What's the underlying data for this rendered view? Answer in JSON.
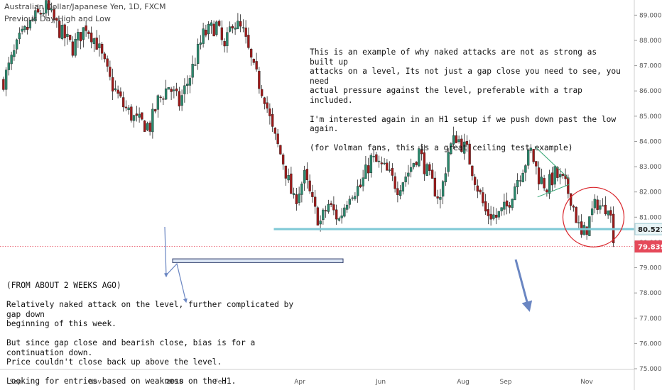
{
  "header": {
    "title": "Australian Dollar/Japanese Yen, 1D, FXCM",
    "indicator": "Previous Day High and Low"
  },
  "annotations": {
    "top_note": "This is an example of why naked attacks are not as strong as built up\nattacks on a level, Its not just a gap close you need to see, you need\nactual pressure against the level, preferable with a trap included.\n\nI'm interested again in an H1 setup if we push down past the low again.\n\n(for Volman fans, this is a great ceiling test example)",
    "bottom_note": "(FROM ABOUT 2 WEEKS AGO)\n\nRelatively naked attack on the level, further complicated by gap down\nbeginning of this week.\n\nBut since gap close and bearish close, bias is for a continuation down.\nPrice couldn't close back up above the level.\n\nLooking for entries based on weakness on the H1."
  },
  "colors": {
    "bull": "#2a8a6e",
    "bear": "#a01919",
    "level_line": "#7fc9d6",
    "level_badge": "#e8f4f6",
    "last_price": "#e5495a",
    "circle": "#d9252b",
    "arrow": "#6a86c2",
    "rect_fill": "#dde7f5",
    "trend": "#3aa878"
  },
  "chart_data": {
    "type": "candlestick",
    "title": "Australian Dollar/Japanese Yen, 1D, FXCM",
    "ylim": [
      75.0,
      89.6
    ],
    "y_ticks": [
      75.0,
      76.0,
      77.0,
      78.0,
      79.0,
      80.0,
      81.0,
      82.0,
      83.0,
      84.0,
      85.0,
      86.0,
      87.0,
      88.0,
      89.0
    ],
    "y_tick_labels": [
      "75.000",
      "76.000",
      "77.000",
      "78.000",
      "79.000",
      "80.000",
      "81.000",
      "82.000",
      "83.000",
      "84.000",
      "85.000",
      "86.000",
      "87.000",
      "88.000",
      "89.000"
    ],
    "x_tick_labels": [
      "Sep",
      "Nov",
      "2018",
      "Feb",
      "Apr",
      "Jun",
      "Aug",
      "Sep",
      "Nov"
    ],
    "level_price": 80.527,
    "level_label": "80.527",
    "last_price": 79.839,
    "last_price_label": "79.839",
    "close_path": [
      [
        0,
        86.4
      ],
      [
        6,
        88.0
      ],
      [
        11,
        88.8
      ],
      [
        16,
        89.3
      ],
      [
        21,
        88.4
      ],
      [
        26,
        87.7
      ],
      [
        31,
        88.6
      ],
      [
        35,
        87.9
      ],
      [
        40,
        86.4
      ],
      [
        45,
        85.4
      ],
      [
        50,
        84.8
      ],
      [
        55,
        84.6
      ],
      [
        58,
        85.6
      ],
      [
        62,
        86.2
      ],
      [
        66,
        85.5
      ],
      [
        70,
        86.6
      ],
      [
        75,
        88.2
      ],
      [
        80,
        88.6
      ],
      [
        83,
        87.6
      ],
      [
        86,
        88.8
      ],
      [
        90,
        88.3
      ],
      [
        94,
        86.8
      ],
      [
        98,
        85.8
      ],
      [
        101,
        84.4
      ],
      [
        105,
        83.2
      ],
      [
        109,
        81.6
      ],
      [
        113,
        82.6
      ],
      [
        117,
        81.2
      ],
      [
        119,
        80.8
      ],
      [
        122,
        81.5
      ],
      [
        126,
        80.9
      ],
      [
        130,
        82.0
      ],
      [
        134,
        82.2
      ],
      [
        138,
        83.3
      ],
      [
        143,
        82.9
      ],
      [
        148,
        82.2
      ],
      [
        152,
        82.8
      ],
      [
        156,
        83.6
      ],
      [
        160,
        82.5
      ],
      [
        164,
        81.7
      ],
      [
        167,
        83.6
      ],
      [
        170,
        84.2
      ],
      [
        174,
        83.6
      ],
      [
        178,
        82.2
      ],
      [
        181,
        81.2
      ],
      [
        185,
        81.0
      ],
      [
        189,
        81.4
      ],
      [
        192,
        82.3
      ],
      [
        195,
        83.0
      ],
      [
        198,
        83.6
      ],
      [
        201,
        82.6
      ],
      [
        204,
        82.2
      ],
      [
        207,
        82.7
      ],
      [
        210,
        82.4
      ],
      [
        213,
        81.8
      ],
      [
        215,
        81.0
      ],
      [
        217,
        80.2
      ],
      [
        219,
        80.6
      ],
      [
        221,
        81.2
      ],
      [
        223,
        81.6
      ],
      [
        225,
        81.3
      ],
      [
        227,
        81.6
      ],
      [
        229,
        80.3
      ]
    ],
    "drawings": {
      "wedge_upper": [
        [
          200,
          83.8
        ],
        [
          213,
          82.5
        ]
      ],
      "wedge_lower": [
        [
          201,
          81.8
        ],
        [
          213,
          82.3
        ]
      ],
      "circle_center": [
        222,
        81.0
      ],
      "rect_range": [
        [
          64,
          79.35
        ],
        [
          128,
          79.2
        ]
      ]
    }
  }
}
